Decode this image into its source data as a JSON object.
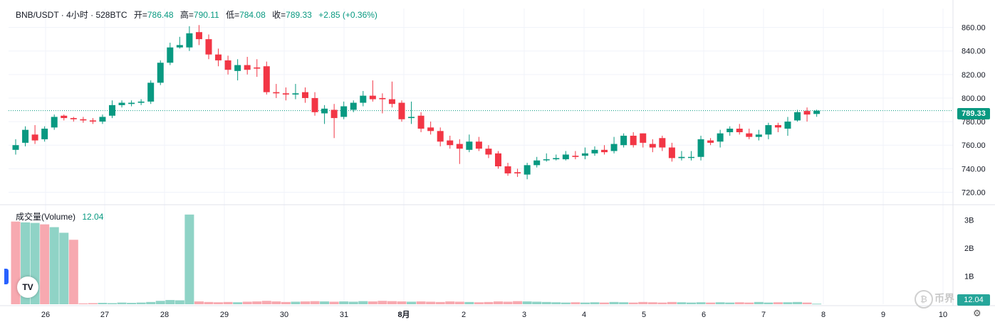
{
  "legend": {
    "symbol": "BNB/USDT · 4小时 · 528BTC",
    "open_label": "开=",
    "open_value": "786.48",
    "high_label": "高=",
    "high_value": "790.11",
    "low_label": "低=",
    "low_value": "784.08",
    "close_label": "收=",
    "close_value": "789.33",
    "change_value": "+2.85 (+0.36%)"
  },
  "volume_legend": {
    "label": "成交量(Volume)",
    "value": "12.04"
  },
  "last_price_badge": "789.33",
  "volume_badge": "12.04",
  "logo_text": "TV",
  "watermark_text": "币界",
  "colors": {
    "up": "#089981",
    "down": "#f23645",
    "vol_up": "#8fd3c6",
    "vol_down": "#f7a9b0",
    "grid": "#f0f3fa"
  },
  "chart_data": [
    {
      "type": "candlestick",
      "title": "BNB/USDT · 4小时 · 528BTC",
      "ylim": [
        710,
        870
      ],
      "yticks": [
        720,
        740,
        760,
        780,
        800,
        820,
        840,
        860
      ],
      "ytick_labels": [
        "720.00",
        "740.00",
        "760.00",
        "780.00",
        "800.00",
        "820.00",
        "840.00",
        "860.00"
      ],
      "xticks": [
        "26",
        "27",
        "28",
        "29",
        "30",
        "31",
        "8月",
        "2",
        "3",
        "4",
        "5",
        "6",
        "7",
        "8",
        "9",
        "10"
      ],
      "last_price": 789.33,
      "ohlc": [
        [
          756,
          760,
          752,
          765
        ],
        [
          762,
          773,
          759,
          776
        ],
        [
          769,
          764,
          761,
          777
        ],
        [
          765,
          774,
          763,
          776
        ],
        [
          775,
          784,
          773,
          786
        ],
        [
          785,
          783,
          781,
          786
        ],
        [
          783,
          782,
          780,
          784
        ],
        [
          782,
          781,
          779,
          784
        ],
        [
          781,
          780,
          778,
          783
        ],
        [
          780,
          784,
          778,
          786
        ],
        [
          785,
          794,
          783,
          798
        ],
        [
          794,
          796,
          792,
          798
        ],
        [
          795,
          796,
          793,
          798
        ],
        [
          796,
          797,
          794,
          799
        ],
        [
          797,
          813,
          795,
          815
        ],
        [
          813,
          830,
          811,
          832
        ],
        [
          830,
          843,
          828,
          847
        ],
        [
          843,
          845,
          842,
          852
        ],
        [
          843,
          855,
          840,
          861
        ],
        [
          856,
          850,
          845,
          862
        ],
        [
          850,
          837,
          833,
          854
        ],
        [
          837,
          832,
          827,
          842
        ],
        [
          832,
          824,
          820,
          836
        ],
        [
          823,
          828,
          815,
          833
        ],
        [
          828,
          824,
          820,
          835
        ],
        [
          826,
          825,
          818,
          833
        ],
        [
          827,
          805,
          803,
          831
        ],
        [
          805,
          804,
          800,
          812
        ],
        [
          804,
          803,
          798,
          809
        ],
        [
          803,
          804,
          799,
          812
        ],
        [
          805,
          800,
          796,
          809
        ],
        [
          800,
          788,
          785,
          805
        ],
        [
          787,
          791,
          778,
          794
        ],
        [
          790,
          783,
          766,
          795
        ],
        [
          784,
          793,
          782,
          797
        ],
        [
          790,
          796,
          788,
          798
        ],
        [
          796,
          802,
          793,
          806
        ],
        [
          802,
          799,
          797,
          815
        ],
        [
          800,
          799,
          787,
          804
        ],
        [
          799,
          795,
          792,
          814
        ],
        [
          796,
          782,
          780,
          798
        ],
        [
          783,
          784,
          778,
          797
        ],
        [
          785,
          774,
          771,
          788
        ],
        [
          775,
          772,
          769,
          780
        ],
        [
          772,
          763,
          759,
          775
        ],
        [
          764,
          760,
          757,
          768
        ],
        [
          761,
          757,
          744,
          765
        ],
        [
          756,
          763,
          754,
          769
        ],
        [
          763,
          757,
          755,
          767
        ],
        [
          757,
          752,
          749,
          760
        ],
        [
          753,
          742,
          740,
          755
        ],
        [
          742,
          736,
          734,
          745
        ],
        [
          737,
          736,
          733,
          740
        ],
        [
          735,
          743,
          731,
          745
        ],
        [
          743,
          747,
          741,
          750
        ],
        [
          748,
          748,
          746,
          753
        ],
        [
          748,
          749,
          747,
          752
        ],
        [
          748,
          752,
          747,
          755
        ],
        [
          751,
          750,
          748,
          755
        ],
        [
          751,
          753,
          748,
          758
        ],
        [
          753,
          756,
          751,
          759
        ],
        [
          756,
          754,
          752,
          760
        ],
        [
          755,
          761,
          753,
          767
        ],
        [
          760,
          768,
          758,
          770
        ],
        [
          768,
          760,
          758,
          771
        ],
        [
          770,
          762,
          758,
          770
        ],
        [
          761,
          758,
          754,
          765
        ],
        [
          766,
          758,
          755,
          768
        ],
        [
          758,
          749,
          746,
          762
        ],
        [
          749,
          750,
          747,
          755
        ],
        [
          750,
          750,
          747,
          755
        ],
        [
          750,
          765,
          747,
          768
        ],
        [
          764,
          762,
          760,
          766
        ],
        [
          763,
          770,
          758,
          773
        ],
        [
          771,
          774,
          768,
          776
        ],
        [
          774,
          771,
          769,
          778
        ],
        [
          770,
          767,
          765,
          774
        ],
        [
          767,
          769,
          764,
          773
        ],
        [
          769,
          777,
          765,
          779
        ],
        [
          777,
          775,
          771,
          779
        ],
        [
          774,
          780,
          768,
          784
        ],
        [
          781,
          788,
          780,
          790
        ],
        [
          789,
          786,
          780,
          792
        ],
        [
          786.48,
          789.33,
          784.08,
          790.11
        ]
      ]
    },
    {
      "type": "bar",
      "title": "成交量(Volume)",
      "ylim": [
        0,
        3.5
      ],
      "yticks": [
        1,
        2,
        3
      ],
      "ytick_labels": [
        "1B",
        "2B",
        "3B"
      ],
      "values": [
        2.95,
        2.92,
        2.9,
        2.85,
        2.75,
        2.55,
        2.3,
        0.03,
        0.04,
        0.05,
        0.04,
        0.06,
        0.05,
        0.06,
        0.08,
        0.12,
        0.15,
        0.14,
        3.2,
        0.1,
        0.08,
        0.07,
        0.08,
        0.07,
        0.09,
        0.1,
        0.12,
        0.1,
        0.08,
        0.09,
        0.1,
        0.11,
        0.1,
        0.09,
        0.1,
        0.09,
        0.11,
        0.1,
        0.12,
        0.11,
        0.1,
        0.09,
        0.1,
        0.09,
        0.08,
        0.1,
        0.09,
        0.08,
        0.07,
        0.08,
        0.1,
        0.09,
        0.11,
        0.1,
        0.09,
        0.08,
        0.07,
        0.06,
        0.07,
        0.06,
        0.07,
        0.06,
        0.08,
        0.07,
        0.06,
        0.08,
        0.07,
        0.06,
        0.08,
        0.07,
        0.06,
        0.07,
        0.06,
        0.07,
        0.06,
        0.07,
        0.06,
        0.08,
        0.06,
        0.07,
        0.07,
        0.08,
        0.06,
        0.02
      ],
      "colors_by_index": [
        "down",
        "up",
        "up",
        "down",
        "up",
        "up",
        "down",
        "down",
        "down",
        "up",
        "up",
        "up",
        "up",
        "up",
        "up",
        "up",
        "up",
        "up",
        "up",
        "down",
        "down",
        "down",
        "down",
        "up",
        "down",
        "down",
        "down",
        "down",
        "down",
        "up",
        "down",
        "down",
        "up",
        "down",
        "up",
        "up",
        "up",
        "down",
        "down",
        "down",
        "down",
        "up",
        "down",
        "down",
        "down",
        "down",
        "down",
        "up",
        "down",
        "down",
        "down",
        "down",
        "down",
        "up",
        "up",
        "up",
        "up",
        "up",
        "down",
        "up",
        "up",
        "down",
        "up",
        "up",
        "down",
        "down",
        "down",
        "down",
        "down",
        "up",
        "up",
        "up",
        "down",
        "up",
        "up",
        "down",
        "down",
        "up",
        "up",
        "down",
        "up",
        "up",
        "down",
        "up"
      ]
    }
  ]
}
